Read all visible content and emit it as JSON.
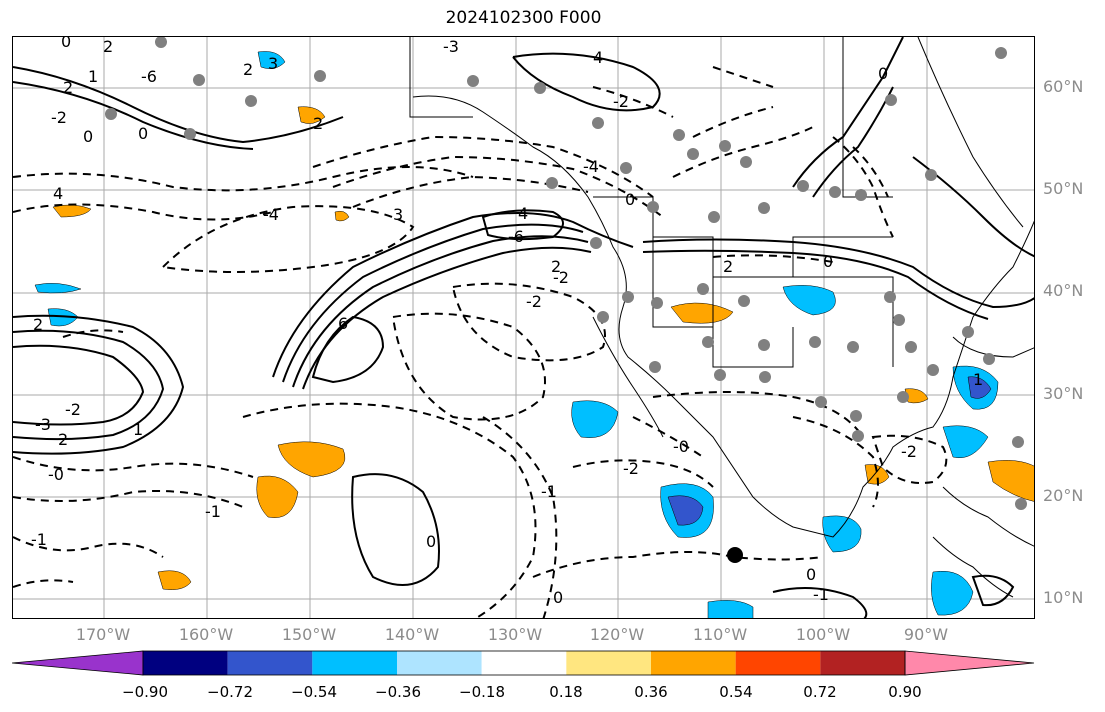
{
  "title": "2024102300 F000",
  "lat_labels": [
    "60°N",
    "50°N",
    "40°N",
    "30°N",
    "20°N",
    "10°N"
  ],
  "lon_labels": [
    "170°W",
    "160°W",
    "150°W",
    "140°W",
    "130°W",
    "120°W",
    "110°W",
    "100°W",
    "90°W"
  ],
  "colorbar": {
    "tick_labels": [
      "−0.90",
      "−0.72",
      "−0.54",
      "−0.36",
      "−0.18",
      "0.18",
      "0.36",
      "0.54",
      "0.72",
      "0.90"
    ],
    "colors": [
      "#9933cc",
      "#000080",
      "#3355cc",
      "#00bfff",
      "#aee4ff",
      "#ffffff",
      "#ffe680",
      "#ffa500",
      "#ff4500",
      "#b22222",
      "#ff88aa"
    ]
  },
  "contour_labels": [
    "0",
    "2",
    "3",
    "2",
    "1",
    "2",
    "0",
    "4",
    "4",
    "-4",
    "3",
    "2",
    "4",
    "-6",
    "6",
    "-2",
    "-2",
    "2",
    "0",
    "2",
    "-2",
    "2",
    "-1",
    "-2",
    "-2",
    "-4",
    "-3",
    "-2",
    "0",
    "-0",
    "1",
    "-1",
    "-1",
    "0",
    "0",
    "-1",
    "0",
    "-2",
    "-0",
    "2",
    "0",
    "1",
    "0",
    "-6",
    "-3"
  ],
  "colors": {
    "positive": "#ffa500",
    "negative": "#00bfff",
    "strong_negative": "#3355cc",
    "grid": "#aaaaaa",
    "station": "#808080"
  }
}
